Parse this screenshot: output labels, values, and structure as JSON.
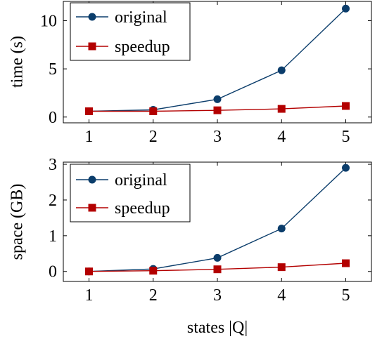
{
  "colors": {
    "original": "#0b3d6b",
    "speedup": "#b30000"
  },
  "chart_data": [
    {
      "type": "line",
      "ylabel": "time (s)",
      "x": [
        1,
        2,
        3,
        4,
        5
      ],
      "xlim": [
        0.6,
        5.4
      ],
      "ylim": [
        -0.6,
        12.0
      ],
      "xticks": [
        "1",
        "2",
        "3",
        "4",
        "5"
      ],
      "yticks": [
        0,
        5,
        10
      ],
      "ytick_labels": [
        "0",
        "5",
        "10"
      ],
      "legend_position": "top-left",
      "series": [
        {
          "name": "original",
          "marker": "circle",
          "values": [
            0.6,
            0.75,
            1.85,
            4.85,
            11.25
          ]
        },
        {
          "name": "speedup",
          "marker": "square",
          "values": [
            0.6,
            0.6,
            0.7,
            0.85,
            1.15
          ]
        }
      ]
    },
    {
      "type": "line",
      "ylabel": "space (GB)",
      "xlabel": "states |Q|",
      "x": [
        1,
        2,
        3,
        4,
        5
      ],
      "xlim": [
        0.6,
        5.4
      ],
      "ylim": [
        -0.28,
        3.06
      ],
      "xticks": [
        "1",
        "2",
        "3",
        "4",
        "5"
      ],
      "yticks": [
        0,
        1,
        2,
        3
      ],
      "ytick_labels": [
        "0",
        "1",
        "2",
        "3"
      ],
      "legend_position": "top-left",
      "series": [
        {
          "name": "original",
          "marker": "circle",
          "values": [
            0.0,
            0.07,
            0.38,
            1.2,
            2.9
          ]
        },
        {
          "name": "speedup",
          "marker": "square",
          "values": [
            0.0,
            0.02,
            0.06,
            0.12,
            0.23
          ]
        }
      ]
    }
  ]
}
